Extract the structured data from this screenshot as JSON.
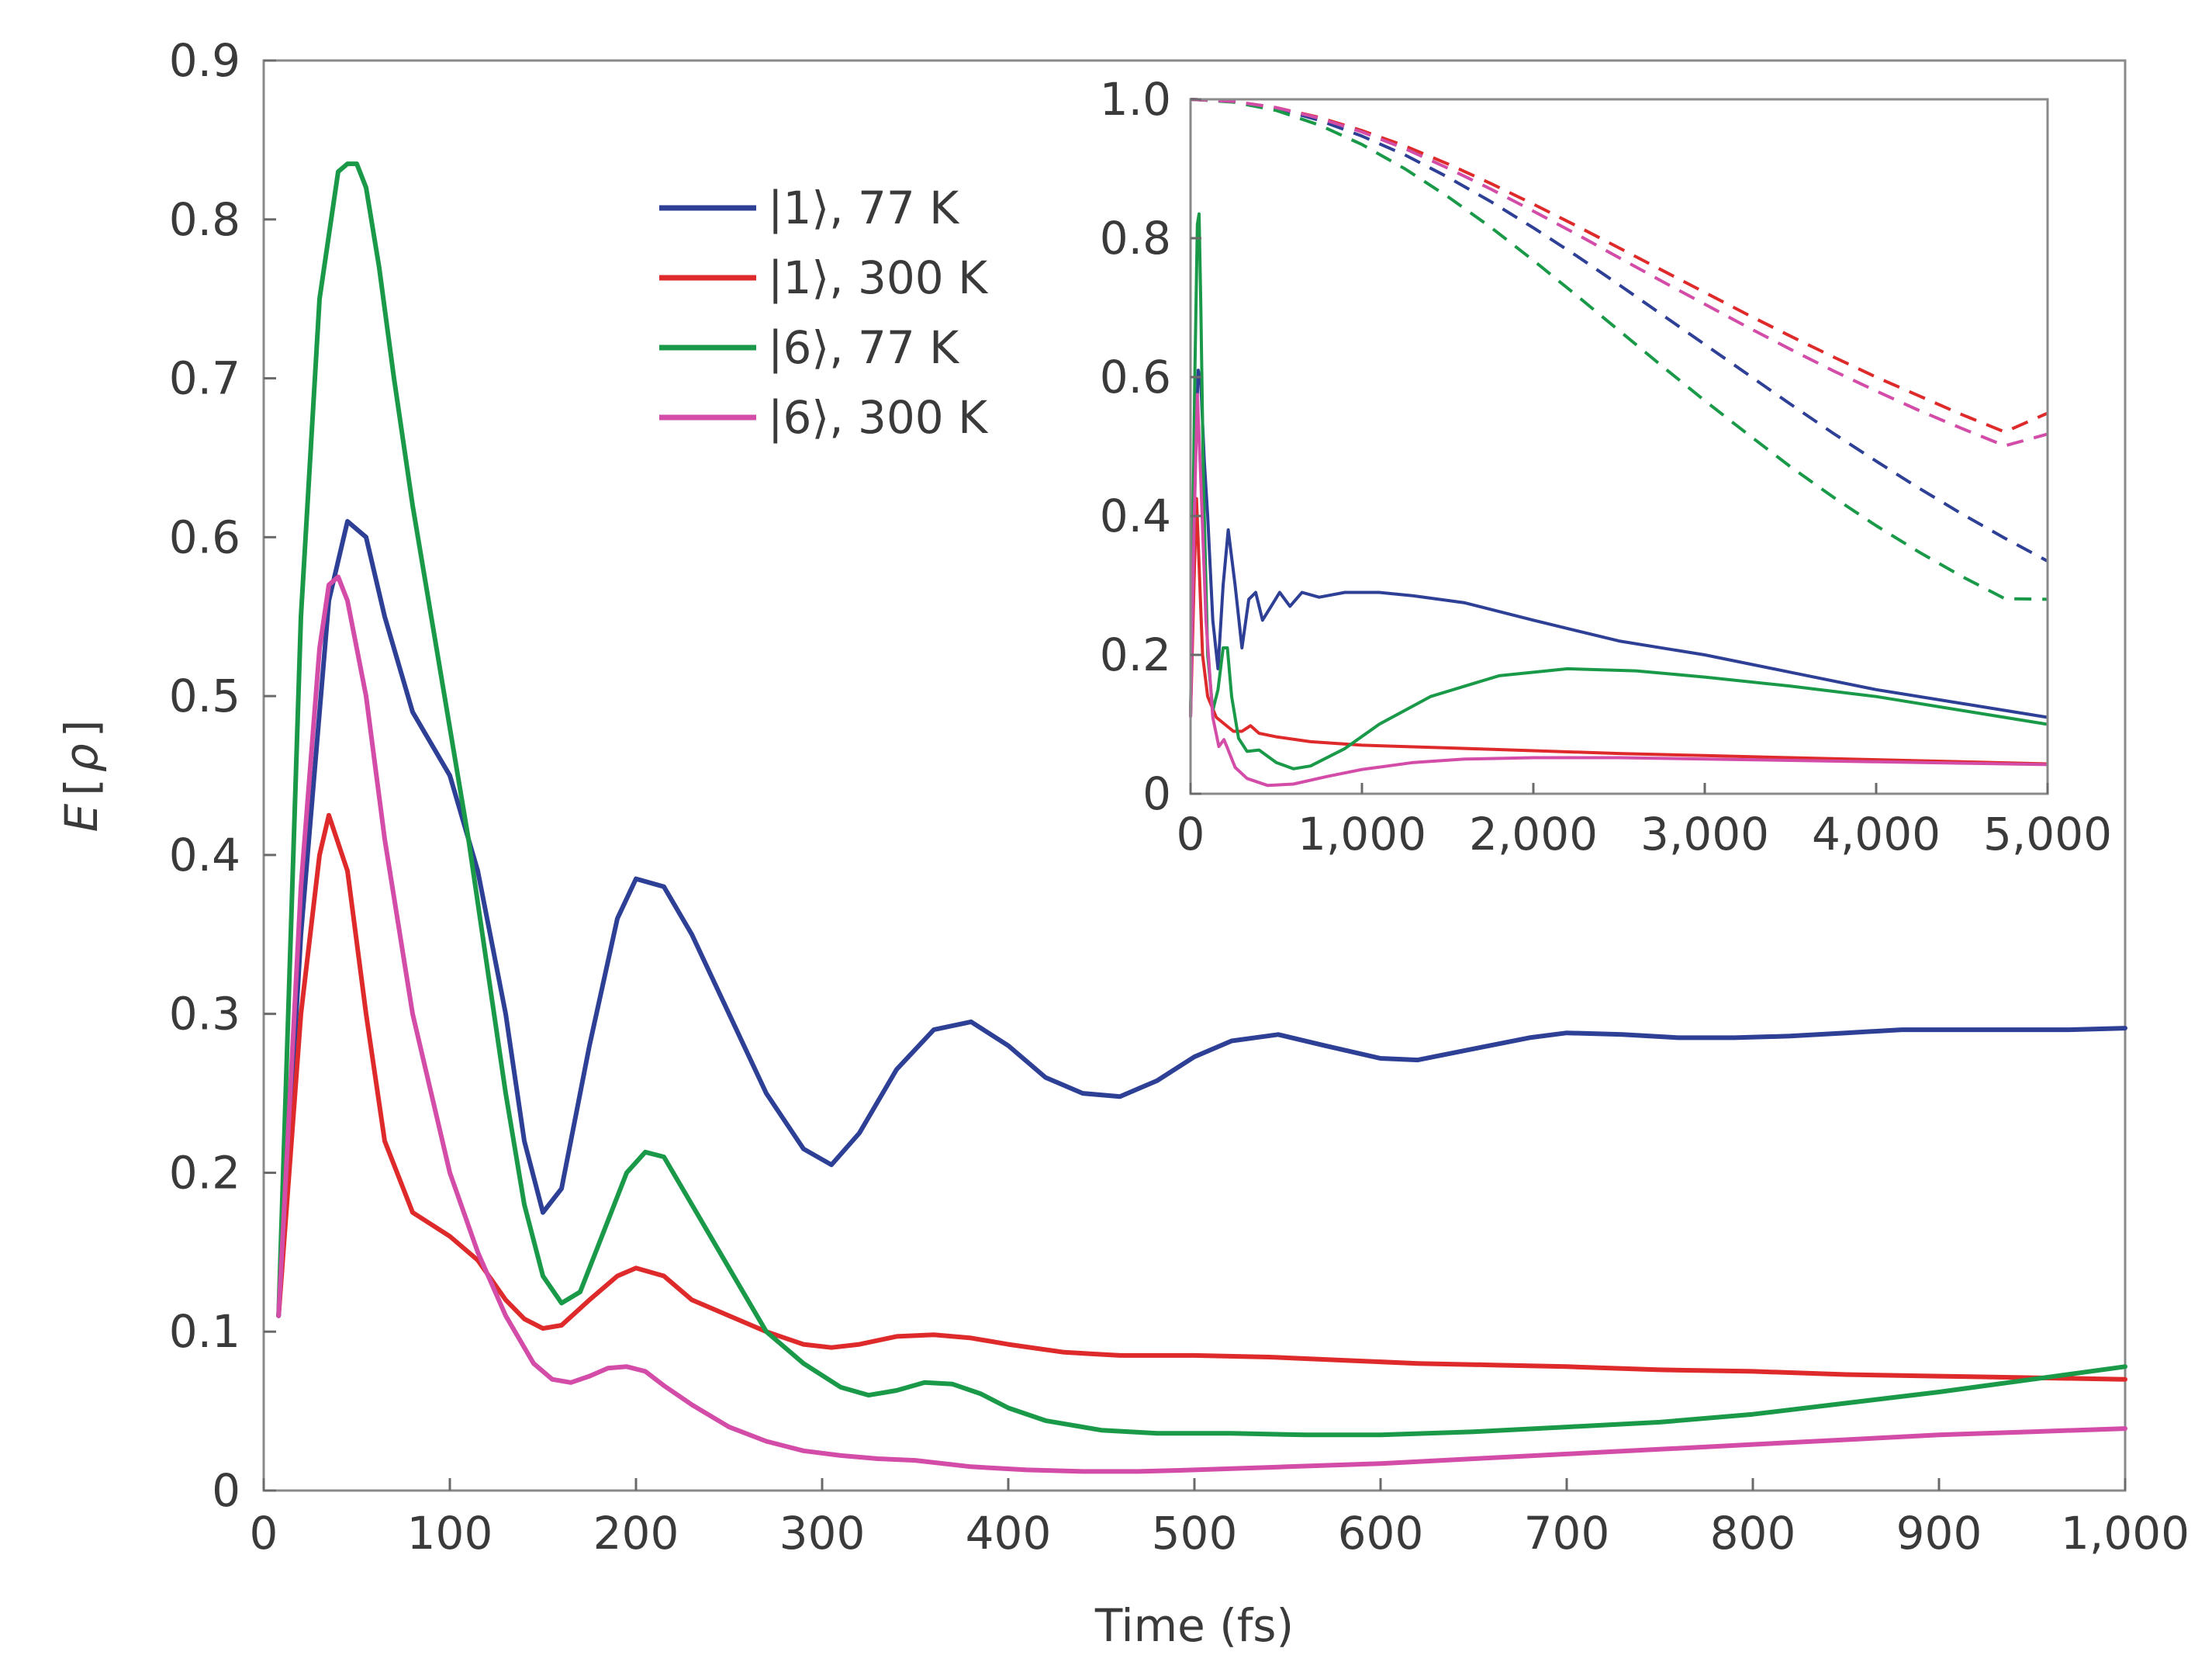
{
  "chart_data": [
    {
      "type": "line",
      "id": "main",
      "xlabel": "Time (fs)",
      "ylabel_main": "E",
      "ylabel_paren_open": "[",
      "ylabel_symbol": "ρ",
      "ylabel_paren_close": "]",
      "xlim": [
        0,
        1000
      ],
      "ylim": [
        0,
        0.9
      ],
      "x_ticks": [
        0,
        100,
        200,
        300,
        400,
        500,
        600,
        700,
        800,
        900,
        1000
      ],
      "x_tick_labels": [
        "0",
        "100",
        "200",
        "300",
        "400",
        "500",
        "600",
        "700",
        "800",
        "900",
        "1,000"
      ],
      "y_ticks": [
        0,
        0.1,
        0.2,
        0.3,
        0.4,
        0.5,
        0.6,
        0.7,
        0.8,
        0.9
      ],
      "y_tick_labels": [
        "0",
        "0.1",
        "0.2",
        "0.3",
        "0.4",
        "0.5",
        "0.6",
        "0.7",
        "0.8",
        "0.9"
      ],
      "grid": false,
      "legend_position": "top-center",
      "series": [
        {
          "name": "|1⟩, 77 K",
          "color": "#2e3f96",
          "x": [
            8,
            20,
            35,
            45,
            55,
            65,
            80,
            100,
            115,
            130,
            140,
            150,
            160,
            175,
            190,
            200,
            215,
            230,
            250,
            270,
            290,
            305,
            320,
            340,
            360,
            380,
            400,
            420,
            440,
            460,
            480,
            500,
            520,
            545,
            570,
            600,
            620,
            650,
            680,
            700,
            730,
            760,
            790,
            820,
            850,
            880,
            910,
            940,
            970,
            1000
          ],
          "y": [
            0.11,
            0.35,
            0.56,
            0.61,
            0.6,
            0.55,
            0.49,
            0.45,
            0.39,
            0.3,
            0.22,
            0.175,
            0.19,
            0.28,
            0.36,
            0.385,
            0.38,
            0.35,
            0.3,
            0.25,
            0.215,
            0.205,
            0.225,
            0.265,
            0.29,
            0.295,
            0.28,
            0.26,
            0.25,
            0.248,
            0.258,
            0.273,
            0.283,
            0.287,
            0.28,
            0.272,
            0.271,
            0.278,
            0.285,
            0.288,
            0.287,
            0.285,
            0.285,
            0.286,
            0.288,
            0.29,
            0.29,
            0.29,
            0.29,
            0.291
          ]
        },
        {
          "name": "|1⟩, 300 K",
          "color": "#de2a2a",
          "x": [
            8,
            20,
            30,
            35,
            45,
            55,
            65,
            80,
            100,
            115,
            130,
            140,
            150,
            160,
            175,
            190,
            200,
            215,
            230,
            250,
            270,
            290,
            305,
            320,
            340,
            360,
            380,
            400,
            430,
            460,
            500,
            540,
            580,
            620,
            660,
            700,
            750,
            800,
            850,
            900,
            950,
            1000
          ],
          "y": [
            0.11,
            0.3,
            0.4,
            0.425,
            0.39,
            0.3,
            0.22,
            0.175,
            0.16,
            0.145,
            0.12,
            0.108,
            0.102,
            0.104,
            0.12,
            0.135,
            0.14,
            0.135,
            0.12,
            0.11,
            0.1,
            0.092,
            0.09,
            0.092,
            0.097,
            0.098,
            0.096,
            0.092,
            0.087,
            0.085,
            0.085,
            0.084,
            0.082,
            0.08,
            0.079,
            0.078,
            0.076,
            0.075,
            0.073,
            0.072,
            0.071,
            0.07
          ]
        },
        {
          "name": "|6⟩, 77 K",
          "color": "#1a9a49",
          "x": [
            8,
            20,
            30,
            40,
            45,
            50,
            55,
            62,
            70,
            80,
            90,
            100,
            110,
            120,
            130,
            140,
            150,
            160,
            170,
            180,
            195,
            205,
            215,
            230,
            250,
            270,
            290,
            310,
            325,
            340,
            355,
            370,
            385,
            400,
            420,
            450,
            480,
            520,
            560,
            600,
            650,
            700,
            750,
            800,
            850,
            900,
            950,
            1000
          ],
          "y": [
            0.11,
            0.55,
            0.75,
            0.83,
            0.835,
            0.835,
            0.82,
            0.77,
            0.7,
            0.62,
            0.55,
            0.48,
            0.41,
            0.33,
            0.25,
            0.18,
            0.135,
            0.118,
            0.125,
            0.155,
            0.2,
            0.213,
            0.21,
            0.18,
            0.14,
            0.1,
            0.08,
            0.065,
            0.06,
            0.063,
            0.068,
            0.067,
            0.061,
            0.052,
            0.044,
            0.038,
            0.036,
            0.036,
            0.035,
            0.035,
            0.037,
            0.04,
            0.043,
            0.048,
            0.055,
            0.062,
            0.07,
            0.078
          ]
        },
        {
          "name": "|6⟩, 300 K",
          "color": "#d24ca8",
          "x": [
            8,
            20,
            30,
            35,
            40,
            45,
            55,
            65,
            80,
            100,
            115,
            130,
            145,
            155,
            165,
            175,
            185,
            195,
            205,
            215,
            230,
            250,
            270,
            290,
            310,
            330,
            350,
            380,
            410,
            440,
            470,
            500,
            550,
            600,
            650,
            700,
            750,
            800,
            850,
            900,
            950,
            1000
          ],
          "y": [
            0.11,
            0.38,
            0.53,
            0.57,
            0.575,
            0.56,
            0.5,
            0.41,
            0.3,
            0.2,
            0.15,
            0.11,
            0.08,
            0.07,
            0.068,
            0.072,
            0.077,
            0.078,
            0.075,
            0.066,
            0.054,
            0.04,
            0.031,
            0.025,
            0.022,
            0.02,
            0.019,
            0.015,
            0.013,
            0.012,
            0.012,
            0.013,
            0.015,
            0.017,
            0.02,
            0.023,
            0.026,
            0.029,
            0.032,
            0.035,
            0.037,
            0.039
          ]
        }
      ]
    },
    {
      "type": "line",
      "id": "inset",
      "xlim": [
        0,
        5000
      ],
      "ylim": [
        0,
        1.0
      ],
      "x_ticks": [
        0,
        1000,
        2000,
        3000,
        4000,
        5000
      ],
      "x_tick_labels": [
        "0",
        "1,000",
        "2,000",
        "3,000",
        "4,000",
        "5,000"
      ],
      "y_ticks": [
        0,
        0.2,
        0.4,
        0.6,
        0.8,
        1.0
      ],
      "y_tick_labels": [
        "0",
        "0.2",
        "0.4",
        "0.6",
        "0.8",
        "1.0"
      ],
      "grid": false,
      "series": [
        {
          "name": "|1⟩, 77 K",
          "color": "#2e3f96",
          "style": "solid",
          "x": [
            0,
            30,
            45,
            60,
            80,
            100,
            130,
            160,
            190,
            220,
            260,
            300,
            340,
            380,
            420,
            470,
            520,
            580,
            650,
            750,
            900,
            1100,
            1300,
            1600,
            2000,
            2500,
            3000,
            3500,
            4000,
            4500,
            5000
          ],
          "y": [
            0.11,
            0.5,
            0.61,
            0.59,
            0.48,
            0.4,
            0.25,
            0.18,
            0.3,
            0.38,
            0.3,
            0.21,
            0.28,
            0.29,
            0.25,
            0.27,
            0.29,
            0.27,
            0.29,
            0.283,
            0.29,
            0.29,
            0.285,
            0.275,
            0.25,
            0.22,
            0.2,
            0.175,
            0.15,
            0.13,
            0.11
          ]
        },
        {
          "name": "|1⟩, 300 K",
          "color": "#de2a2a",
          "style": "solid",
          "x": [
            0,
            20,
            35,
            50,
            70,
            100,
            150,
            200,
            250,
            300,
            350,
            400,
            500,
            700,
            1000,
            1500,
            2000,
            2500,
            3000,
            3500,
            4000,
            4500,
            5000
          ],
          "y": [
            0.11,
            0.3,
            0.425,
            0.33,
            0.2,
            0.14,
            0.11,
            0.1,
            0.09,
            0.09,
            0.098,
            0.087,
            0.082,
            0.075,
            0.07,
            0.066,
            0.062,
            0.058,
            0.055,
            0.052,
            0.049,
            0.046,
            0.043
          ]
        },
        {
          "name": "|6⟩, 77 K",
          "color": "#1a9a49",
          "style": "solid",
          "x": [
            0,
            25,
            40,
            50,
            60,
            75,
            100,
            130,
            160,
            190,
            215,
            240,
            280,
            330,
            400,
            500,
            600,
            700,
            900,
            1100,
            1400,
            1800,
            2200,
            2600,
            3000,
            3500,
            4000,
            4500,
            5000
          ],
          "y": [
            0.11,
            0.6,
            0.82,
            0.835,
            0.7,
            0.45,
            0.2,
            0.12,
            0.15,
            0.21,
            0.21,
            0.14,
            0.08,
            0.061,
            0.063,
            0.045,
            0.036,
            0.04,
            0.065,
            0.1,
            0.14,
            0.17,
            0.18,
            0.177,
            0.168,
            0.155,
            0.14,
            0.12,
            0.1
          ]
        },
        {
          "name": "|6⟩, 300 K",
          "color": "#d24ca8",
          "style": "solid",
          "x": [
            0,
            20,
            40,
            60,
            90,
            130,
            165,
            195,
            215,
            260,
            330,
            450,
            600,
            800,
            1000,
            1300,
            1600,
            2000,
            2500,
            3000,
            3500,
            4000,
            4500,
            5000
          ],
          "y": [
            0.11,
            0.38,
            0.575,
            0.45,
            0.25,
            0.11,
            0.068,
            0.078,
            0.066,
            0.038,
            0.022,
            0.012,
            0.014,
            0.025,
            0.035,
            0.045,
            0.05,
            0.052,
            0.052,
            0.05,
            0.048,
            0.046,
            0.044,
            0.042
          ]
        },
        {
          "name": "|1⟩, 77 K (dashed)",
          "color": "#2e3f96",
          "style": "dashed",
          "x": [
            0,
            250,
            500,
            750,
            1000,
            1250,
            1500,
            1750,
            2000,
            2250,
            2500,
            2750,
            3000,
            3250,
            3500,
            3750,
            4000,
            4250,
            4500,
            4750,
            5000
          ],
          "y": [
            1.0,
            0.997,
            0.987,
            0.97,
            0.947,
            0.92,
            0.888,
            0.853,
            0.815,
            0.775,
            0.733,
            0.69,
            0.647,
            0.604,
            0.561,
            0.519,
            0.479,
            0.44,
            0.403,
            0.368,
            0.335
          ]
        },
        {
          "name": "|1⟩, 300 K (dashed)",
          "color": "#de2a2a",
          "style": "dashed",
          "x": [
            0,
            250,
            500,
            750,
            1000,
            1250,
            1500,
            1750,
            2000,
            2250,
            2500,
            2750,
            3000,
            3250,
            3500,
            3750,
            4000,
            4250,
            4500,
            4750,
            5000
          ],
          "y": [
            1.0,
            0.997,
            0.988,
            0.974,
            0.955,
            0.933,
            0.907,
            0.879,
            0.849,
            0.818,
            0.786,
            0.754,
            0.722,
            0.69,
            0.659,
            0.629,
            0.6,
            0.573,
            0.546,
            0.521,
            0.548
          ]
        },
        {
          "name": "|6⟩, 77 K (dashed)",
          "color": "#1a9a49",
          "style": "dashed",
          "x": [
            0,
            250,
            500,
            750,
            1000,
            1250,
            1500,
            1750,
            2000,
            2250,
            2500,
            2750,
            3000,
            3250,
            3500,
            3750,
            4000,
            4250,
            4500,
            4750,
            5000
          ],
          "y": [
            1.0,
            0.996,
            0.984,
            0.963,
            0.935,
            0.9,
            0.86,
            0.816,
            0.768,
            0.718,
            0.667,
            0.616,
            0.566,
            0.518,
            0.471,
            0.427,
            0.386,
            0.348,
            0.313,
            0.281,
            0.28
          ]
        },
        {
          "name": "|6⟩, 300 K (dashed)",
          "color": "#d24ca8",
          "style": "dashed",
          "x": [
            0,
            250,
            500,
            750,
            1000,
            1250,
            1500,
            1750,
            2000,
            2250,
            2500,
            2750,
            3000,
            3250,
            3500,
            3750,
            4000,
            4250,
            4500,
            4750,
            5000
          ],
          "y": [
            1.0,
            0.997,
            0.988,
            0.973,
            0.953,
            0.929,
            0.901,
            0.871,
            0.839,
            0.806,
            0.772,
            0.738,
            0.705,
            0.672,
            0.64,
            0.609,
            0.58,
            0.552,
            0.526,
            0.501,
            0.518
          ]
        }
      ]
    }
  ]
}
